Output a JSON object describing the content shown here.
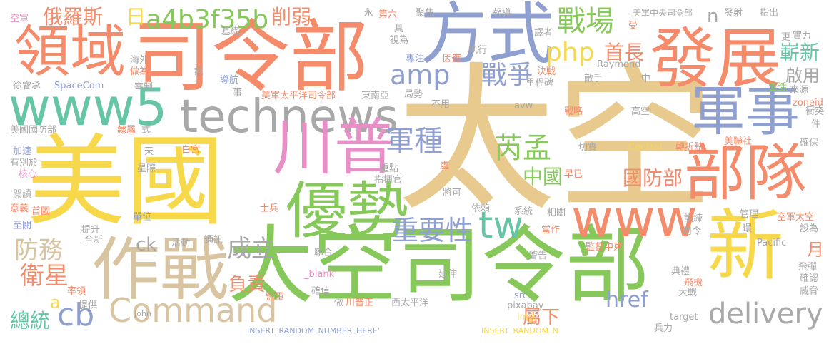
{
  "palette": {
    "gold": "#E8C98E",
    "yellow": "#F7D84A",
    "orange": "#F48B6A",
    "blue": "#8FA0D0",
    "green": "#86C95A",
    "teal": "#66C5A5",
    "pink": "#E88FC8",
    "gray": "#A8A8A8",
    "tan": "#D8C4A0",
    "mint": "#8FD7B8",
    "rose": "#F0A0B8"
  },
  "words": [
    {
      "text": "太空",
      "color": "#E8C98E"
    },
    {
      "text": "美國",
      "color": "#F7D84A"
    },
    {
      "text": "司令部",
      "color": "#F48B6A"
    },
    {
      "text": "太空司令部",
      "color": "#86C95A"
    },
    {
      "text": "發展",
      "color": "#F48B6A"
    },
    {
      "text": "方式",
      "color": "#8FA0D0"
    },
    {
      "text": "新",
      "color": "#F7D84A"
    },
    {
      "text": "部隊",
      "color": "#F48B6A"
    },
    {
      "text": "軍事",
      "color": "#8FA0D0"
    },
    {
      "text": "www5",
      "color": "#66C5A5"
    },
    {
      "text": "technews",
      "color": "#A8A8A8"
    },
    {
      "text": "領域",
      "color": "#F48B6A"
    },
    {
      "text": "作戰",
      "color": "#D8C4A0"
    },
    {
      "text": "川普",
      "color": "#E88FC8"
    },
    {
      "text": "優勢",
      "color": "#86C95A"
    },
    {
      "text": "www",
      "color": "#F48B6A"
    },
    {
      "text": "delivery",
      "color": "#A8A8A8"
    },
    {
      "text": "Command",
      "color": "#D8C4A0"
    },
    {
      "text": "a4b3f35b",
      "color": "#86C95A"
    },
    {
      "text": "tw",
      "color": "#66C5A5"
    },
    {
      "text": "重要性",
      "color": "#8FA0D0"
    },
    {
      "text": "amp",
      "color": "#8FA0D0"
    },
    {
      "text": "php",
      "color": "#F7D84A"
    },
    {
      "text": "戰場",
      "color": "#86C95A"
    },
    {
      "text": "首長",
      "color": "#F48B6A"
    },
    {
      "text": "戰爭",
      "color": "#8FA0D0"
    },
    {
      "text": "軍種",
      "color": "#8FA0D0"
    },
    {
      "text": "芮孟",
      "color": "#86C95A"
    },
    {
      "text": "中國",
      "color": "#86C95A"
    },
    {
      "text": "國防部",
      "color": "#F48B6A"
    },
    {
      "text": "成立",
      "color": "#A8A8A8"
    },
    {
      "text": "防務",
      "color": "#D8C4A0"
    },
    {
      "text": "衛星",
      "color": "#F48B6A"
    },
    {
      "text": "cb",
      "color": "#8FA0D0"
    },
    {
      "text": "總統",
      "color": "#66C5A5"
    },
    {
      "text": "負責",
      "color": "#F48B6A"
    },
    {
      "text": "俄羅斯",
      "color": "#F48B6A"
    },
    {
      "text": "日",
      "color": "#F7D84A"
    },
    {
      "text": "削弱",
      "color": "#F48B6A"
    },
    {
      "text": "嶄新",
      "color": "#66C5A5"
    },
    {
      "text": "啟用",
      "color": "#A8A8A8"
    },
    {
      "text": "href",
      "color": "#8FA0D0"
    },
    {
      "text": "屬下",
      "color": "#F48B6A"
    },
    {
      "text": "ck",
      "color": "#A8A8A8"
    },
    {
      "text": "a",
      "color": "#F7D84A"
    },
    {
      "text": "n",
      "color": "#A8A8A8"
    },
    {
      "text": "月",
      "color": "#F48B6A"
    },
    {
      "text": "空軍",
      "color": "#E88FC8"
    },
    {
      "text": "基礎",
      "color": "#A8A8A8"
    },
    {
      "text": "海外",
      "color": "#A8A8A8"
    },
    {
      "text": "做為",
      "color": "#F48B6A"
    },
    {
      "text": "說",
      "color": "#A8A8A8"
    },
    {
      "text": "徐睿承",
      "color": "#A8A8A8"
    },
    {
      "text": "SpaceCom",
      "color": "#8FA0D0"
    },
    {
      "text": "宰制",
      "color": "#A8A8A8"
    },
    {
      "text": "導航",
      "color": "#8FA0D0"
    },
    {
      "text": "事",
      "color": "#A8A8A8"
    },
    {
      "text": "美軍太平洋司令部",
      "color": "#F48B6A"
    },
    {
      "text": "東南亞",
      "color": "#A8A8A8"
    },
    {
      "text": "局勢",
      "color": "#A8A8A8"
    },
    {
      "text": "美國國防部",
      "color": "#A8A8A8"
    },
    {
      "text": "隸屬",
      "color": "#F48B6A"
    },
    {
      "text": "式",
      "color": "#A8A8A8"
    },
    {
      "text": "加速",
      "color": "#8FA0D0"
    },
    {
      "text": "有別於",
      "color": "#A8A8A8"
    },
    {
      "text": "天",
      "color": "#A8A8A8"
    },
    {
      "text": "白宮",
      "color": "#F48B6A"
    },
    {
      "text": "核心",
      "color": "#E88FC8"
    },
    {
      "text": "星際",
      "color": "#A8A8A8"
    },
    {
      "text": "重點",
      "color": "#A8A8A8"
    },
    {
      "text": "指揮官",
      "color": "#A8A8A8"
    },
    {
      "text": "閱讀",
      "color": "#A8A8A8"
    },
    {
      "text": "意義",
      "color": "#F48B6A"
    },
    {
      "text": "首圖",
      "color": "#F48B6A"
    },
    {
      "text": "士兵",
      "color": "#F48B6A"
    },
    {
      "text": "單位",
      "color": "#8FA0D0"
    },
    {
      "text": "至關",
      "color": "#8FA0D0"
    },
    {
      "text": "提升",
      "color": "#A8A8A8"
    },
    {
      "text": "全新",
      "color": "#A8A8A8"
    },
    {
      "text": "活動",
      "color": "#A8A8A8"
    },
    {
      "text": "通訊",
      "color": "#A8A8A8"
    },
    {
      "text": "率領",
      "color": "#F48B6A"
    },
    {
      "text": "提供",
      "color": "#A8A8A8"
    },
    {
      "text": "_blank'",
      "color": "#E88FC8"
    },
    {
      "text": "盟軍",
      "color": "#F48B6A"
    },
    {
      "text": "確信",
      "color": "#A8A8A8"
    },
    {
      "text": "做",
      "color": "#A8A8A8"
    },
    {
      "text": "川普正",
      "color": "#F48B6A"
    },
    {
      "text": "西太平洋",
      "color": "#A8A8A8"
    },
    {
      "text": "John",
      "color": "#A8A8A8"
    },
    {
      "text": "INSERT_RANDOM_NUMBER_HERE'",
      "color": "#8FA0D0"
    },
    {
      "text": "INSERT_RANDOM_N",
      "color": "#F7D84A"
    },
    {
      "text": "永",
      "color": "#A8A8A8"
    },
    {
      "text": "第六",
      "color": "#F48B6A"
    },
    {
      "text": "具",
      "color": "#A8A8A8"
    },
    {
      "text": "視為",
      "color": "#A8A8A8"
    },
    {
      "text": "聚焦",
      "color": "#A8A8A8"
    },
    {
      "text": "專注",
      "color": "#8FA0D0"
    },
    {
      "text": "因應",
      "color": "#F48B6A"
    },
    {
      "text": "報導",
      "color": "#A8A8A8"
    },
    {
      "text": "執行",
      "color": "#A8A8A8"
    },
    {
      "text": "譯者",
      "color": "#A8A8A8"
    },
    {
      "text": "美軍中央司令部",
      "color": "#A8A8A8"
    },
    {
      "text": "發射",
      "color": "#A8A8A8"
    },
    {
      "text": "指出",
      "color": "#A8A8A8"
    },
    {
      "text": "受",
      "color": "#F48B6A"
    },
    {
      "text": "更",
      "color": "#A8A8A8"
    },
    {
      "text": "實力",
      "color": "#A8A8A8"
    },
    {
      "text": "Raymond",
      "color": "#A8A8A8"
    },
    {
      "text": "來源",
      "color": "#A8A8A8"
    },
    {
      "text": "決戰",
      "color": "#F48B6A"
    },
    {
      "text": "里程碑",
      "color": "#A8A8A8"
    },
    {
      "text": "敵手",
      "color": "#A8A8A8"
    },
    {
      "text": "中",
      "color": "#A8A8A8"
    },
    {
      "text": "生活",
      "color": "#86C95A"
    },
    {
      "text": "不用",
      "color": "#A8A8A8"
    },
    {
      "text": "avw",
      "color": "#A8A8A8"
    },
    {
      "text": "zoneid",
      "color": "#F48B6A"
    },
    {
      "text": "戰略",
      "color": "#F48B6A"
    },
    {
      "text": "高空",
      "color": "#A8A8A8"
    },
    {
      "text": "衝突",
      "color": "#A8A8A8"
    },
    {
      "text": "件",
      "color": "#A8A8A8"
    },
    {
      "text": "美聯社",
      "color": "#F48B6A"
    },
    {
      "text": "切實",
      "color": "#A8A8A8"
    },
    {
      "text": "Central",
      "color": "#F7D84A"
    },
    {
      "text": "轉折點",
      "color": "#F48B6A"
    },
    {
      "text": "確保",
      "color": "#A8A8A8"
    },
    {
      "text": "處",
      "color": "#F48B6A"
    },
    {
      "text": "早已",
      "color": "#F48B6A"
    },
    {
      "text": "將可",
      "color": "#A8A8A8"
    },
    {
      "text": "依賴",
      "color": "#A8A8A8"
    },
    {
      "text": "系統",
      "color": "#A8A8A8"
    },
    {
      "text": "相關",
      "color": "#A8A8A8"
    },
    {
      "text": "管理",
      "color": "#A8A8A8"
    },
    {
      "text": "空軍太空",
      "color": "#F48B6A"
    },
    {
      "text": "設為",
      "color": "#A8A8A8"
    },
    {
      "text": "訓練",
      "color": "#A8A8A8"
    },
    {
      "text": "當作",
      "color": "#F48B6A"
    },
    {
      "text": "司令",
      "color": "#A8A8A8"
    },
    {
      "text": "環",
      "color": "#A8A8A8"
    },
    {
      "text": "Pacific",
      "color": "#A8A8A8"
    },
    {
      "text": "監督中東",
      "color": "#F48B6A"
    },
    {
      "text": "聯合",
      "color": "#A8A8A8"
    },
    {
      "text": "警告",
      "color": "#A8A8A8"
    },
    {
      "text": "延伸",
      "color": "#A8A8A8"
    },
    {
      "text": "典禮",
      "color": "#A8A8A8"
    },
    {
      "text": "飛彈",
      "color": "#A8A8A8"
    },
    {
      "text": "飛機",
      "color": "#F48B6A"
    },
    {
      "text": "確認",
      "color": "#A8A8A8"
    },
    {
      "text": "大戰",
      "color": "#A8A8A8"
    },
    {
      "text": "威脅",
      "color": "#A8A8A8"
    },
    {
      "text": "src",
      "color": "#8FA0D0"
    },
    {
      "text": "pixabay",
      "color": "#A8A8A8"
    },
    {
      "text": "img",
      "color": "#F7D84A"
    },
    {
      "text": "target",
      "color": "#A8A8A8"
    },
    {
      "text": "兵力",
      "color": "#A8A8A8"
    }
  ]
}
